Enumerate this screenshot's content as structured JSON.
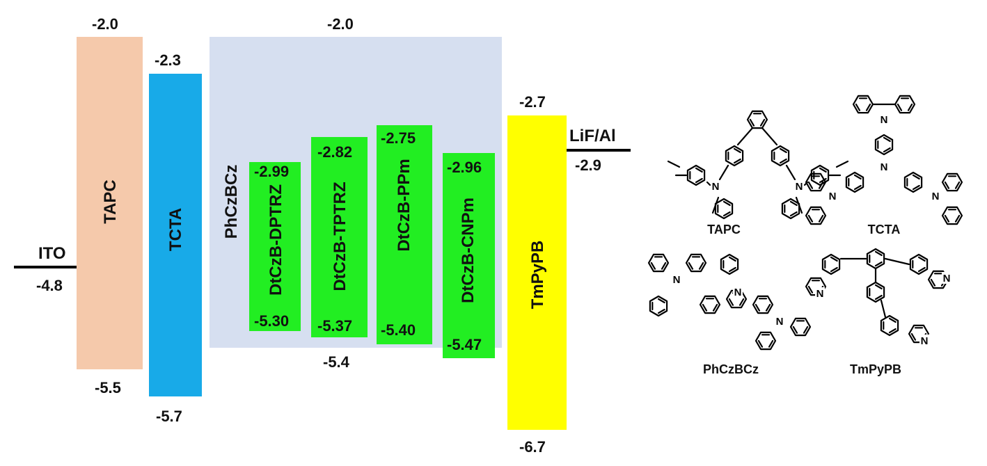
{
  "electrodes": {
    "ito": {
      "label": "ITO",
      "value": "-4.8"
    },
    "cathode": {
      "label": "LiF/Al",
      "value": "-2.9"
    }
  },
  "layers": {
    "tapc": {
      "label": "TAPC",
      "lumo": "-2.0",
      "homo": "-5.5",
      "color": "#f5c9ab"
    },
    "tcta": {
      "label": "TCTA",
      "lumo": "-2.3",
      "homo": "-5.7",
      "color": "#18aae8"
    },
    "host": {
      "label": "PhCzBCz",
      "lumo": "-2.0",
      "homo": "-5.4",
      "color": "#d6dff0"
    },
    "tmpypb": {
      "label": "TmPyPB",
      "lumo": "-2.7",
      "homo": "-6.7",
      "color": "#ffff00"
    }
  },
  "emitters": {
    "e1": {
      "label": "DtCzB-DPTRZ",
      "lumo": "-2.99",
      "homo": "-5.30",
      "color": "#22ee22"
    },
    "e2": {
      "label": "DtCzB-TPTRZ",
      "lumo": "-2.82",
      "homo": "-5.37",
      "color": "#22ee22"
    },
    "e3": {
      "label": "DtCzB-PPm",
      "lumo": "-2.75",
      "homo": "-5.40",
      "color": "#22ee22"
    },
    "e4": {
      "label": "DtCzB-CNPm",
      "lumo": "-2.96",
      "homo": "-5.47",
      "color": "#22ee22"
    }
  },
  "structures": {
    "tapc": {
      "name": "TAPC"
    },
    "tcta": {
      "name": "TCTA"
    },
    "phczbcz": {
      "name": "PhCzBCz"
    },
    "tmpypb": {
      "name": "TmPyPB"
    },
    "atom_n": "N"
  }
}
